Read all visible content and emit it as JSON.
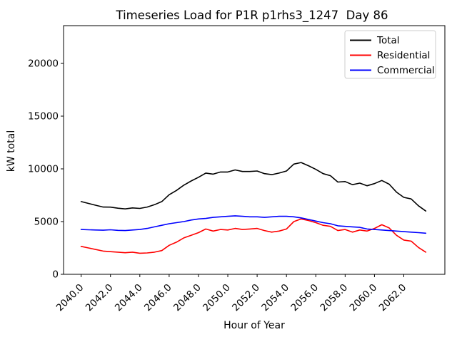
{
  "figure": {
    "background": "#ffffff",
    "frame_color": "#000000",
    "legend_border_color": "#cccccc",
    "legend_background": "rgba(255,255,255,0.8)"
  },
  "chart_data": {
    "type": "line",
    "title": "Timeseries Load for P1R p1rhs3_1247  Day 86",
    "xlabel": "Hour of Year",
    "ylabel": "kW total",
    "xlim": [
      2038.8,
      2064.8
    ],
    "ylim": [
      0,
      23580
    ],
    "grid": false,
    "legend_position": "upper right",
    "x_ticks": [
      2040,
      2042,
      2044,
      2046,
      2048,
      2050,
      2052,
      2054,
      2056,
      2058,
      2060,
      2062
    ],
    "x_tick_labels": [
      "2040.0",
      "2042.0",
      "2044.0",
      "2046.0",
      "2048.0",
      "2050.0",
      "2052.0",
      "2054.0",
      "2056.0",
      "2058.0",
      "2060.0",
      "2062.0"
    ],
    "y_ticks": [
      0,
      5000,
      10000,
      15000,
      20000
    ],
    "y_tick_labels": [
      "0",
      "5000",
      "10000",
      "15000",
      "20000"
    ],
    "x": [
      2040.0,
      2040.5,
      2041.0,
      2041.5,
      2042.0,
      2042.5,
      2043.0,
      2043.5,
      2044.0,
      2044.5,
      2045.0,
      2045.5,
      2046.0,
      2046.5,
      2047.0,
      2047.5,
      2048.0,
      2048.5,
      2049.0,
      2049.5,
      2050.0,
      2050.5,
      2051.0,
      2051.5,
      2052.0,
      2052.5,
      2053.0,
      2053.5,
      2054.0,
      2054.5,
      2055.0,
      2055.5,
      2056.0,
      2056.5,
      2057.0,
      2057.5,
      2058.0,
      2058.5,
      2059.0,
      2059.5,
      2060.0,
      2060.5,
      2061.0,
      2061.5,
      2062.0,
      2062.5,
      2063.0,
      2063.5
    ],
    "series": [
      {
        "name": "Total",
        "color": "#000000",
        "values": [
          6900,
          6720,
          6550,
          6380,
          6370,
          6270,
          6200,
          6300,
          6250,
          6380,
          6600,
          6900,
          7550,
          7950,
          8450,
          8850,
          9200,
          9600,
          9500,
          9700,
          9700,
          9900,
          9750,
          9750,
          9800,
          9550,
          9450,
          9600,
          9800,
          10450,
          10600,
          10300,
          9950,
          9550,
          9350,
          8750,
          8800,
          8500,
          8650,
          8400,
          8600,
          8900,
          8550,
          7800,
          7300,
          7150,
          6500,
          6000
        ]
      },
      {
        "name": "Residential",
        "color": "#ff0000",
        "values": [
          2650,
          2500,
          2350,
          2200,
          2150,
          2100,
          2050,
          2100,
          2000,
          2030,
          2100,
          2250,
          2750,
          3050,
          3450,
          3700,
          3950,
          4300,
          4100,
          4250,
          4200,
          4350,
          4250,
          4300,
          4350,
          4150,
          4000,
          4100,
          4300,
          5000,
          5250,
          5100,
          4900,
          4650,
          4550,
          4150,
          4250,
          4000,
          4200,
          4100,
          4350,
          4700,
          4400,
          3700,
          3250,
          3150,
          2550,
          2100
        ]
      },
      {
        "name": "Commercial",
        "color": "#0000ff",
        "values": [
          4250,
          4220,
          4200,
          4180,
          4220,
          4170,
          4150,
          4200,
          4250,
          4350,
          4500,
          4650,
          4800,
          4900,
          5000,
          5150,
          5250,
          5300,
          5400,
          5450,
          5500,
          5550,
          5500,
          5450,
          5450,
          5400,
          5450,
          5500,
          5500,
          5450,
          5350,
          5200,
          5050,
          4900,
          4800,
          4600,
          4550,
          4500,
          4450,
          4300,
          4250,
          4200,
          4150,
          4100,
          4050,
          4000,
          3950,
          3900
        ]
      }
    ]
  }
}
